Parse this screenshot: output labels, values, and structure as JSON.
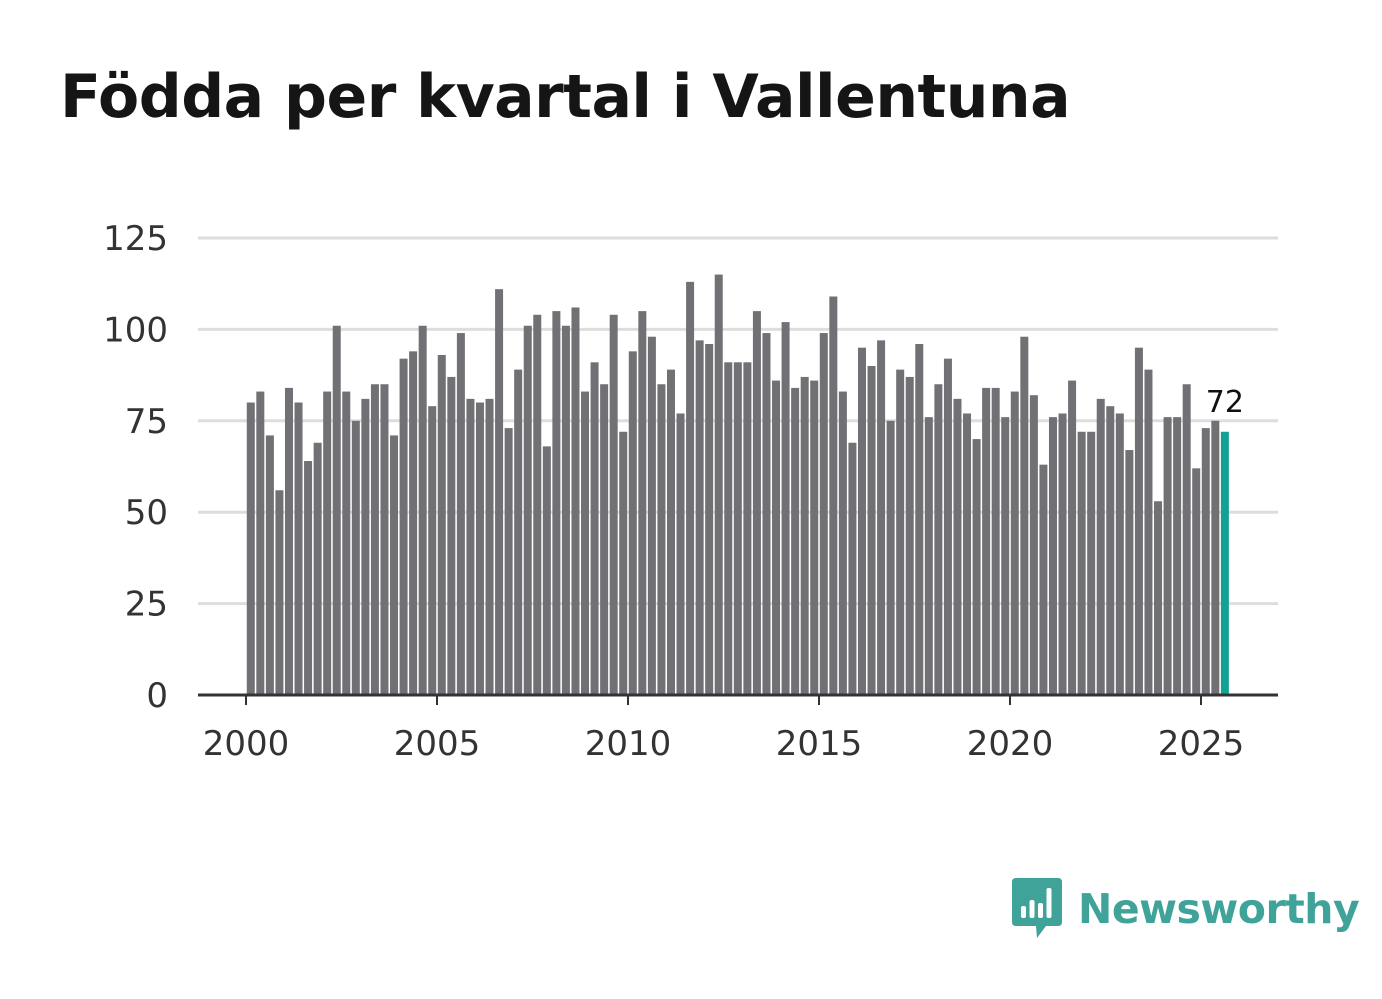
{
  "title": "Födda per kvartal i Vallentuna",
  "brand": {
    "name": "Newsworthy",
    "color": "#3fa39a",
    "logo_icon": "bar-chart-speech-bubble-icon"
  },
  "colors": {
    "bar": "#717075",
    "highlight": "#12a194",
    "grid": "#dddddd",
    "axis": "#333333"
  },
  "chart_data": {
    "type": "bar",
    "title": "Födda per kvartal i Vallentuna",
    "xlabel": "",
    "ylabel": "",
    "ylim": [
      0,
      125
    ],
    "yticks": [
      0,
      25,
      50,
      75,
      100,
      125
    ],
    "xticks": [
      2000,
      2005,
      2010,
      2015,
      2020,
      2025
    ],
    "xtick_labels": [
      "2000",
      "2005",
      "2010",
      "2015",
      "2020",
      "2025"
    ],
    "x_start_year": 2000,
    "period": "quarter",
    "grid": true,
    "highlight_last": true,
    "last_value_label": "72",
    "values": [
      80,
      83,
      71,
      56,
      84,
      80,
      64,
      69,
      83,
      101,
      83,
      75,
      81,
      85,
      85,
      71,
      92,
      94,
      101,
      79,
      93,
      87,
      99,
      81,
      80,
      81,
      111,
      73,
      89,
      101,
      104,
      68,
      105,
      101,
      106,
      83,
      91,
      85,
      104,
      72,
      94,
      105,
      98,
      85,
      89,
      77,
      113,
      97,
      96,
      115,
      91,
      91,
      91,
      105,
      99,
      86,
      102,
      84,
      87,
      86,
      99,
      109,
      83,
      69,
      95,
      90,
      97,
      75,
      89,
      87,
      96,
      76,
      85,
      92,
      81,
      77,
      70,
      84,
      84,
      76,
      83,
      98,
      82,
      63,
      76,
      77,
      86,
      72,
      72,
      81,
      79,
      77,
      67,
      95,
      89,
      53,
      76,
      76,
      85,
      62,
      73,
      75,
      72
    ]
  }
}
